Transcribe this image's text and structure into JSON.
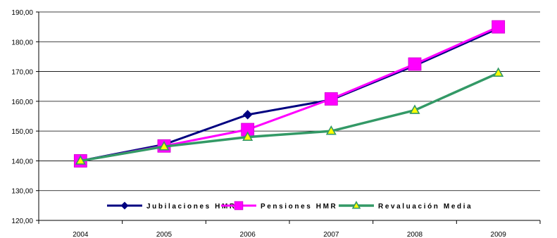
{
  "chart_data": {
    "type": "line",
    "title": "",
    "xlabel": "",
    "ylabel": "",
    "categories": [
      "2004",
      "2005",
      "2006",
      "2007",
      "2008",
      "2009"
    ],
    "ylim": [
      120,
      190
    ],
    "yticks": [
      "120,00",
      "130,00",
      "140,00",
      "150,00",
      "160,00",
      "170,00",
      "180,00",
      "190,00"
    ],
    "grid": "horizontal",
    "legend_position": "inside-bottom",
    "series": [
      {
        "name": "Jubilaciones HMR",
        "values": [
          140.0,
          145.5,
          155.5,
          160.5,
          172.0,
          184.5
        ],
        "color": "#000080",
        "marker": "diamond"
      },
      {
        "name": "Pensiones HMR",
        "values": [
          140.0,
          145.0,
          150.5,
          160.8,
          172.5,
          185.0
        ],
        "color": "#ff00ff",
        "marker": "square"
      },
      {
        "name": "Revaluación Media",
        "values": [
          140.0,
          144.8,
          148.0,
          150.0,
          157.0,
          169.5
        ],
        "color": "#339966",
        "marker": "triangle",
        "marker_fill": "#ffff00"
      }
    ]
  }
}
